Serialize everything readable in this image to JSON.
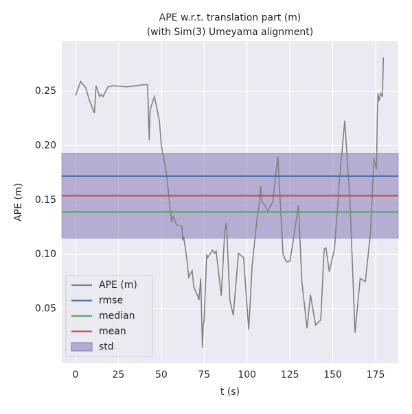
{
  "chart_data": {
    "type": "line",
    "title": "APE w.r.t. translation part (m)",
    "subtitle": "(with Sim(3) Umeyama alignment)",
    "x_label": "t (s)",
    "y_label": "APE (m)",
    "x": [
      0,
      3,
      6,
      8,
      11,
      12,
      14,
      15,
      16,
      19,
      22,
      30,
      35,
      40,
      42,
      43,
      43.5,
      46,
      49,
      50,
      53,
      55,
      56,
      57,
      59,
      62,
      62.5,
      63,
      65,
      66,
      68,
      69,
      71,
      72,
      73,
      74,
      74.5,
      75,
      76,
      76.5,
      77,
      80,
      81,
      82,
      85,
      87,
      88,
      90,
      92,
      95,
      98,
      101,
      103,
      106,
      107,
      108,
      108.5,
      110,
      112,
      115,
      118,
      120,
      121,
      123,
      125,
      127,
      130,
      132,
      135,
      137,
      140,
      143,
      145,
      146,
      148,
      151,
      154,
      157,
      160,
      163,
      166,
      169,
      172,
      174,
      175.5,
      176,
      176.5,
      177,
      178,
      179,
      179.5
    ],
    "series": [
      {
        "name": "APE (m)",
        "color": "#808080",
        "values": [
          0.246,
          0.259,
          0.253,
          0.242,
          0.23,
          0.255,
          0.245,
          0.247,
          0.245,
          0.254,
          0.255,
          0.254,
          0.255,
          0.256,
          0.256,
          0.205,
          0.233,
          0.245,
          0.222,
          0.2,
          0.175,
          0.145,
          0.13,
          0.135,
          0.127,
          0.126,
          0.113,
          0.117,
          0.095,
          0.079,
          0.085,
          0.07,
          0.063,
          0.058,
          0.078,
          0.014,
          0.035,
          0.04,
          0.08,
          0.1,
          0.097,
          0.104,
          0.101,
          0.103,
          0.062,
          0.121,
          0.129,
          0.058,
          0.044,
          0.101,
          0.097,
          0.031,
          0.09,
          0.135,
          0.145,
          0.163,
          0.149,
          0.146,
          0.14,
          0.148,
          0.19,
          0.13,
          0.1,
          0.093,
          0.094,
          0.113,
          0.145,
          0.075,
          0.032,
          0.063,
          0.035,
          0.04,
          0.105,
          0.106,
          0.084,
          0.105,
          0.17,
          0.223,
          0.15,
          0.028,
          0.078,
          0.075,
          0.12,
          0.188,
          0.178,
          0.23,
          0.248,
          0.241,
          0.248,
          0.245,
          0.281
        ]
      }
    ],
    "stats": [
      {
        "name": "rmse",
        "color": "#4c72b0",
        "value": 0.172
      },
      {
        "name": "median",
        "color": "#55a868",
        "value": 0.139
      },
      {
        "name": "mean",
        "color": "#c44e52",
        "value": 0.154
      }
    ],
    "std": {
      "name": "std",
      "color": "#8172b2",
      "value": 0.039
    },
    "xlim": [
      -8,
      188.2
    ],
    "ylim": [
      0.0,
      0.296
    ],
    "xticks": [
      0,
      25,
      50,
      75,
      100,
      125,
      150,
      175
    ],
    "yticks": [
      0.05,
      0.1,
      0.15,
      0.2,
      0.25
    ],
    "grid": true,
    "legend": "lower left"
  }
}
